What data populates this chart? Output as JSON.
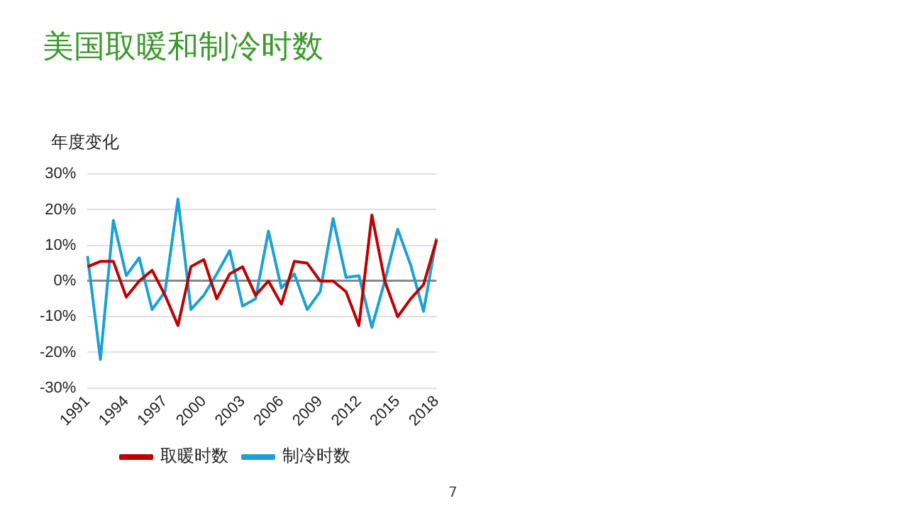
{
  "chart_data": {
    "type": "line",
    "title": "美国取暖和制冷时数",
    "ylabel": "年度变化",
    "categories": [
      "1991",
      null,
      null,
      "1994",
      null,
      null,
      "1997",
      null,
      null,
      "2000",
      null,
      null,
      "2003",
      null,
      null,
      "2006",
      null,
      null,
      "2009",
      null,
      null,
      "2012",
      null,
      null,
      "2015",
      null,
      null,
      "2018"
    ],
    "series": [
      {
        "name": "取暖时数",
        "color": "#c00000",
        "values": [
          4,
          5.5,
          5.5,
          -4.5,
          0,
          3,
          -4,
          -12.5,
          4,
          6,
          -5,
          2,
          4,
          -4,
          0,
          -6.5,
          5.5,
          5,
          0,
          0,
          -3,
          -12.5,
          18.5,
          0,
          -10,
          -5,
          -1,
          11.5
        ]
      },
      {
        "name": "制冷时数",
        "color": "#1ba1d6",
        "values": [
          7,
          -22,
          17,
          1.5,
          6.5,
          -8,
          -3,
          23,
          -8,
          -4,
          2,
          8.5,
          -7,
          -5,
          14,
          -2,
          2,
          -8,
          -3,
          17.5,
          1,
          1.5,
          -13,
          0,
          14.5,
          4.5,
          -8.5,
          12
        ]
      }
    ],
    "ylim": [
      -30,
      30
    ],
    "yticks": [
      {
        "value": -30,
        "label": "-30%"
      },
      {
        "value": -20,
        "label": "-20%"
      },
      {
        "value": -10,
        "label": "-10%"
      },
      {
        "value": 0,
        "label": "0%"
      },
      {
        "value": 10,
        "label": "10%"
      },
      {
        "value": 20,
        "label": "20%"
      },
      {
        "value": 30,
        "label": "30%"
      }
    ],
    "grid": "y",
    "legend": "bottom",
    "marker": "none",
    "line_style": "solid",
    "annotations": [
      "7"
    ]
  }
}
